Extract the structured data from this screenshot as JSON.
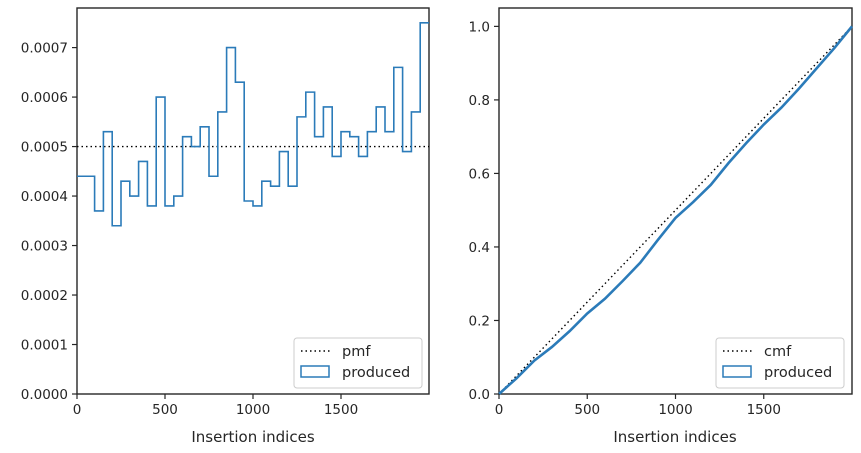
{
  "chart_data": [
    {
      "type": "histogram",
      "xlabel": "Insertion indices",
      "ylabel": "",
      "xlim": [
        0,
        2000
      ],
      "ylim": [
        0,
        0.00078
      ],
      "xticks": [
        0,
        500,
        1000,
        1500
      ],
      "xtick_labels": [
        "0",
        "500",
        "1000",
        "1500"
      ],
      "yticks": [
        0,
        0.0001,
        0.0002,
        0.0003,
        0.0004,
        0.0005,
        0.0006,
        0.0007
      ],
      "ytick_labels": [
        "0.0000",
        "0.0001",
        "0.0002",
        "0.0003",
        "0.0004",
        "0.0005",
        "0.0006",
        "0.0007"
      ],
      "legend_position": "lower-right",
      "bin_edges": [
        0,
        100,
        150,
        200,
        250,
        300,
        350,
        400,
        450,
        500,
        550,
        600,
        650,
        700,
        750,
        800,
        850,
        900,
        950,
        1000,
        1050,
        1100,
        1150,
        1200,
        1250,
        1300,
        1350,
        1400,
        1450,
        1500,
        1550,
        1600,
        1650,
        1700,
        1750,
        1800,
        1850,
        1900,
        1950,
        2000
      ],
      "series": [
        {
          "name": "pmf",
          "style": "dotted",
          "color": "#000000",
          "y": 0.0005
        },
        {
          "name": "produced",
          "style": "step",
          "color": "#1f77b4",
          "values": [
            0.00044,
            0.00037,
            0.00053,
            0.00034,
            0.00043,
            0.0004,
            0.00047,
            0.00038,
            0.0006,
            0.00038,
            0.0004,
            0.00052,
            0.0005,
            0.00054,
            0.00044,
            0.00057,
            0.0007,
            0.00063,
            0.00039,
            0.00038,
            0.00043,
            0.00042,
            0.00049,
            0.00042,
            0.00056,
            0.00061,
            0.00052,
            0.00058,
            0.00048,
            0.00053,
            0.00052,
            0.00048,
            0.00053,
            0.00058,
            0.00053,
            0.00066,
            0.00049,
            0.00057,
            0.00075
          ]
        }
      ]
    },
    {
      "type": "line",
      "xlabel": "Insertion indices",
      "ylabel": "",
      "xlim": [
        0,
        2000
      ],
      "ylim": [
        0,
        1.05
      ],
      "xticks": [
        0,
        500,
        1000,
        1500
      ],
      "xtick_labels": [
        "0",
        "500",
        "1000",
        "1500"
      ],
      "yticks": [
        0,
        0.2,
        0.4,
        0.6,
        0.8,
        1.0
      ],
      "ytick_labels": [
        "0.0",
        "0.2",
        "0.4",
        "0.6",
        "0.8",
        "1.0"
      ],
      "legend_position": "lower-right",
      "series": [
        {
          "name": "cmf",
          "style": "dotted",
          "color": "#000000",
          "x": [
            0,
            2000
          ],
          "y": [
            0,
            1.0
          ]
        },
        {
          "name": "produced",
          "style": "step",
          "color": "#1f77b4",
          "x": [
            0,
            100,
            200,
            300,
            400,
            500,
            600,
            700,
            800,
            900,
            1000,
            1100,
            1200,
            1300,
            1400,
            1500,
            1600,
            1700,
            1800,
            1900,
            2000
          ],
          "y": [
            0,
            0.043,
            0.091,
            0.128,
            0.171,
            0.219,
            0.259,
            0.307,
            0.357,
            0.419,
            0.479,
            0.522,
            0.569,
            0.628,
            0.682,
            0.733,
            0.779,
            0.831,
            0.886,
            0.941,
            1.0
          ]
        }
      ]
    }
  ]
}
